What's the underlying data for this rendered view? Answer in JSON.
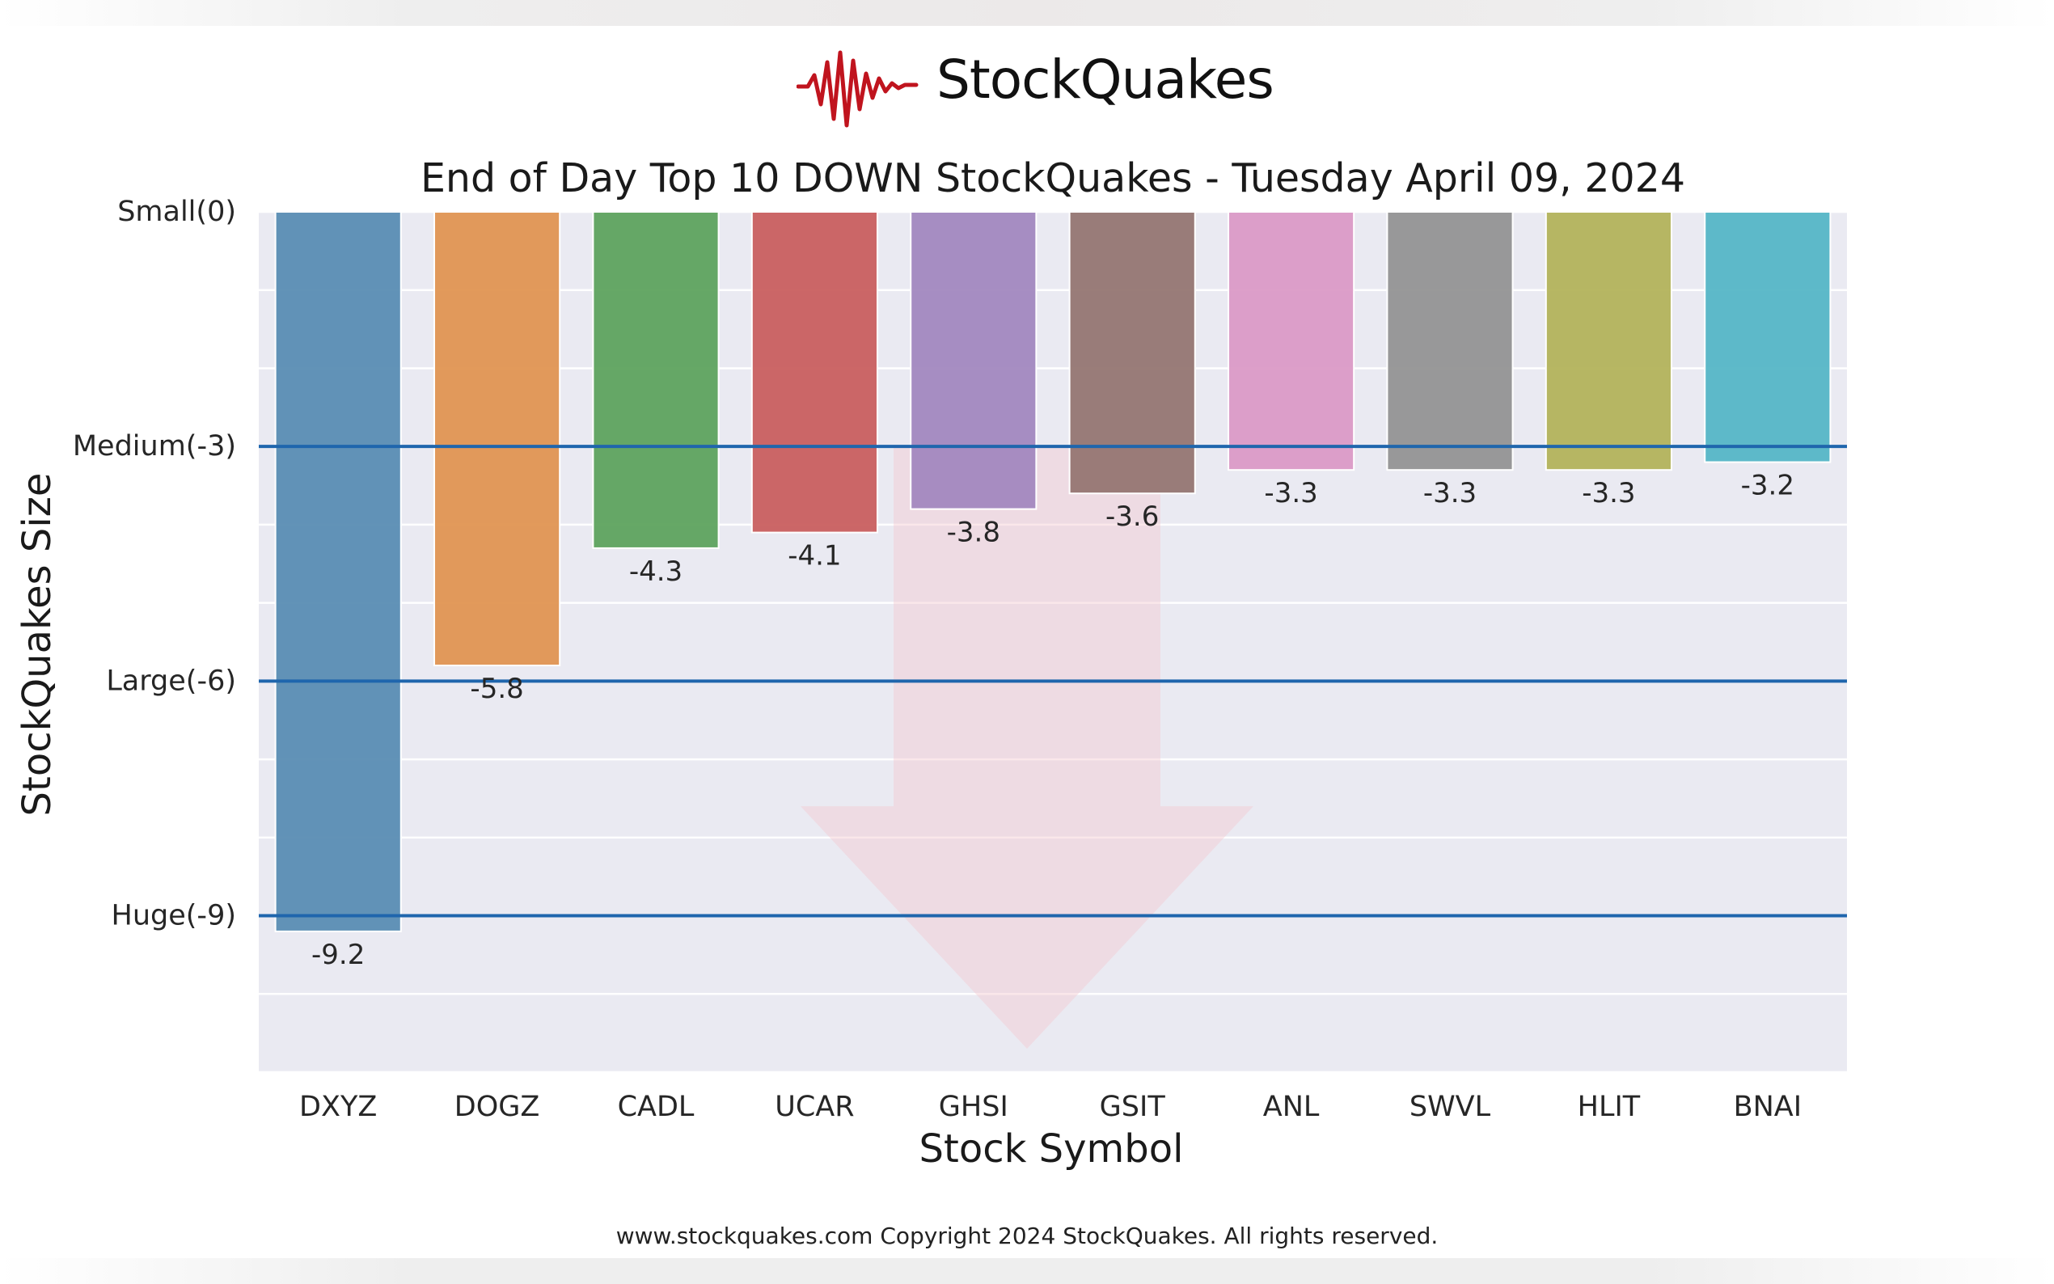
{
  "brand": {
    "name": "StockQuakes",
    "accent_color": "#c0141e"
  },
  "footer": "www.stockquakes.com Copyright 2024 StockQuakes. All rights reserved.",
  "chart_data": {
    "type": "bar",
    "title": "End of Day Top 10 DOWN StockQuakes - Tuesday April 09, 2024",
    "xlabel": "Stock Symbol",
    "ylabel": "StockQuakes Size",
    "categories": [
      "DXYZ",
      "DOGZ",
      "CADL",
      "UCAR",
      "GHSI",
      "GSIT",
      "ANL",
      "SWVL",
      "HLIT",
      "BNAI"
    ],
    "values": [
      -9.2,
      -5.8,
      -4.3,
      -4.1,
      -3.8,
      -3.6,
      -3.3,
      -3.3,
      -3.3,
      -3.2
    ],
    "data_labels": [
      "-9.2",
      "-5.8",
      "-4.3",
      "-4.1",
      "-3.8",
      "-3.6",
      "-3.3",
      "-3.3",
      "-3.3",
      "-3.2"
    ],
    "colors": [
      "#5a8db3",
      "#e09552",
      "#5ea35e",
      "#c95f5f",
      "#a288bf",
      "#957672",
      "#db9ac6",
      "#939393",
      "#b3b35b",
      "#55b6c6"
    ],
    "ylim": [
      -11,
      0
    ],
    "yticks": [
      {
        "value": 0,
        "label": "Small(0)"
      },
      {
        "value": -3,
        "label": "Medium(-3)"
      },
      {
        "value": -6,
        "label": "Large(-6)"
      },
      {
        "value": -9,
        "label": "Huge(-9)"
      }
    ],
    "reference_lines": [
      -3,
      -6,
      -9
    ],
    "reference_line_color": "#1f66ad",
    "plot_background": "#eaeaf2",
    "grid": true,
    "watermark": "down-arrow"
  }
}
